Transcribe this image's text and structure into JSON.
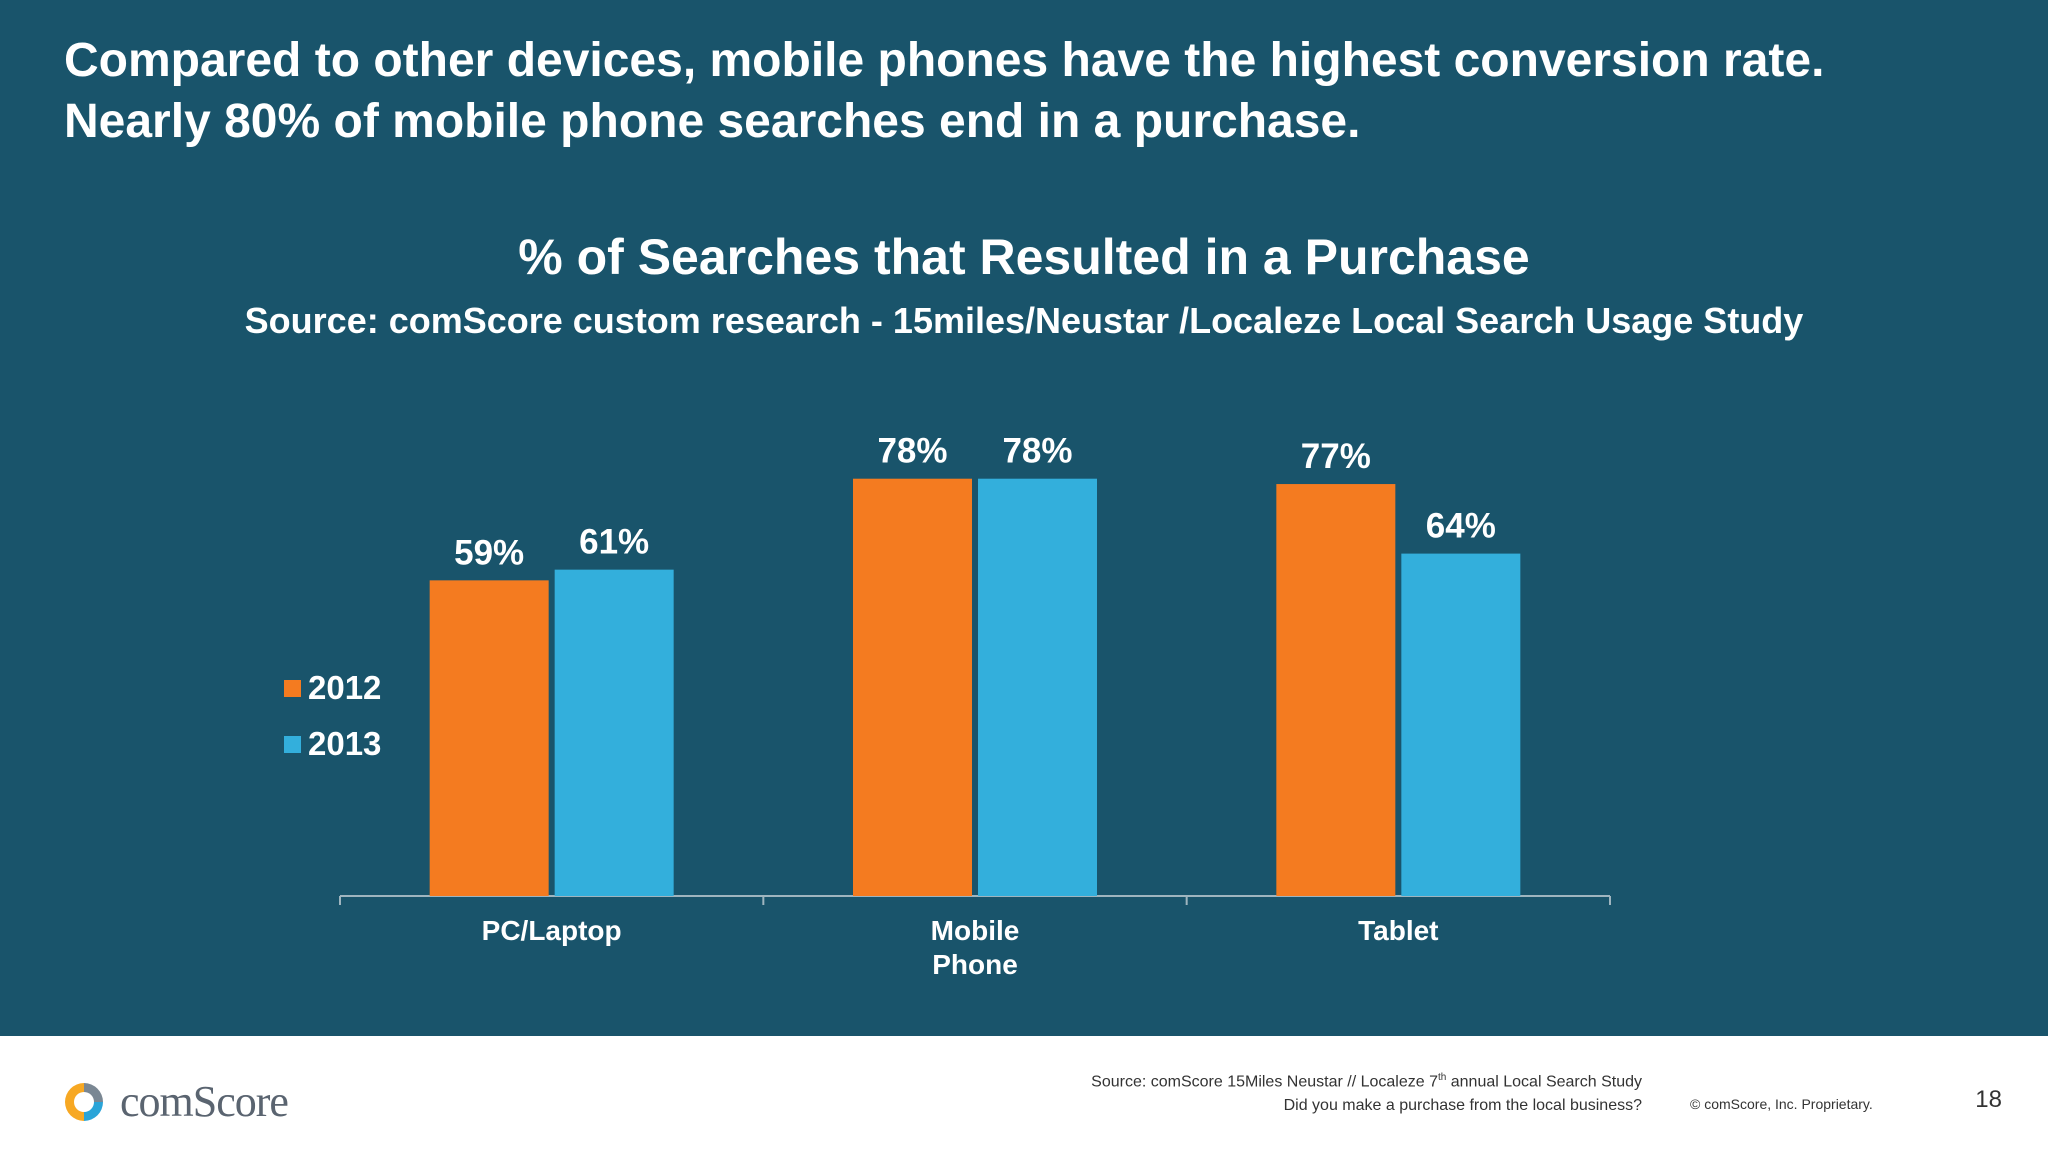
{
  "headline": {
    "line1": "Compared to other devices, mobile phones have the highest conversion rate.",
    "line2": "Nearly 80% of mobile phone searches end in a purchase."
  },
  "colors": {
    "background": "#19546b",
    "series_2012": "#f47b20",
    "series_2013": "#33afdc",
    "text": "#ffffff"
  },
  "chart_data": {
    "type": "bar",
    "title": "% of Searches that Resulted in a Purchase",
    "subtitle": "Source: comScore custom research - 15miles/Neustar /Localeze Local Search Usage Study",
    "categories": [
      [
        "PC/Laptop"
      ],
      [
        "Mobile",
        "Phone"
      ],
      [
        "Tablet"
      ]
    ],
    "series": [
      {
        "name": "2012",
        "values": [
          59,
          78,
          77
        ],
        "labels": [
          "59%",
          "78%",
          "77%"
        ]
      },
      {
        "name": "2013",
        "values": [
          61,
          78,
          64
        ],
        "labels": [
          "61%",
          "78%",
          "64%"
        ]
      }
    ],
    "ylim": [
      0,
      100
    ],
    "grid": false,
    "legend": "left"
  },
  "footer": {
    "source_line1_pre": "Source: comScore 15Miles Neustar // Localeze 7",
    "source_line1_sup": "th",
    "source_line1_post": " annual Local Search Study",
    "source_line2": "Did you make a purchase from the local business?",
    "copyright": "© comScore, Inc. Proprietary.",
    "page_number": "18",
    "logo_text": "comScore",
    "logo_icon": "comscore-logo-icon"
  }
}
